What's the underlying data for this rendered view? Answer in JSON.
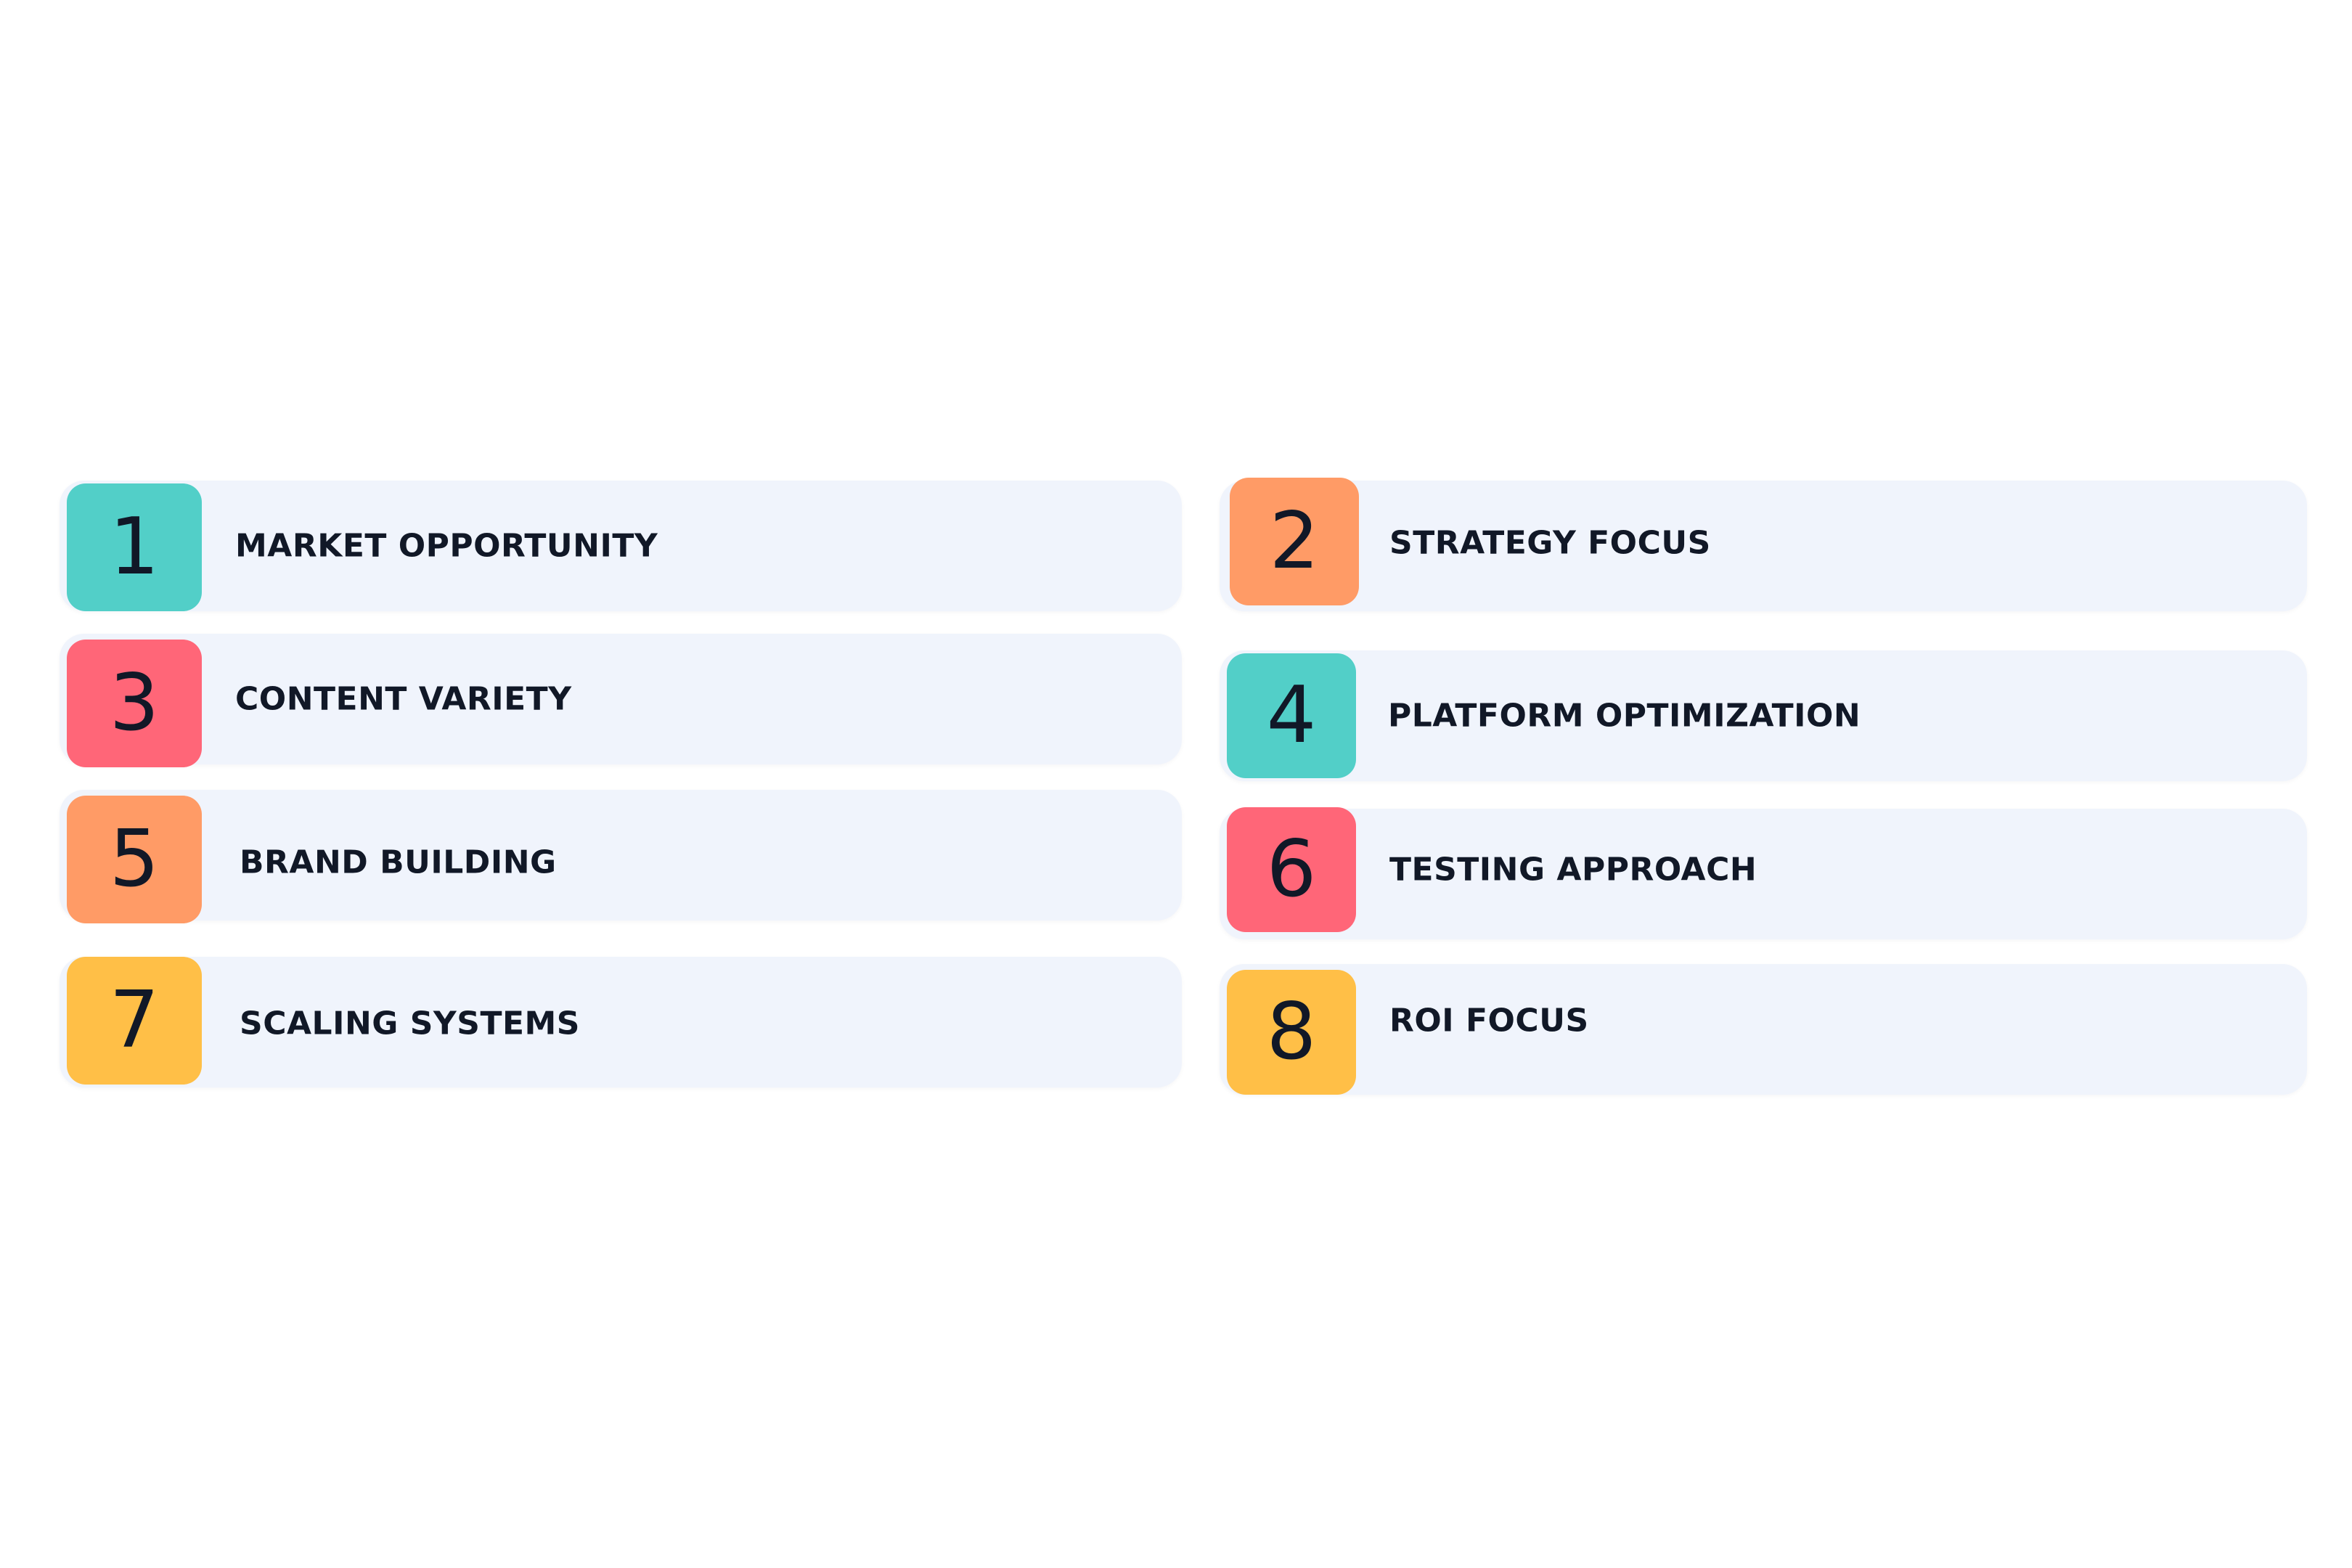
{
  "items": [
    {
      "number": "1",
      "label": "MARKET OPPORTUNITY",
      "color": "#52cfc8"
    },
    {
      "number": "2",
      "label": "STRATEGY FOCUS",
      "color": "#ff9b66"
    },
    {
      "number": "3",
      "label": "CONTENT VARIETY",
      "color": "#ff6678"
    },
    {
      "number": "4",
      "label": "PLATFORM OPTIMIZATION",
      "color": "#52cfc8"
    },
    {
      "number": "5",
      "label": "BRAND BUILDING",
      "color": "#ff9b66"
    },
    {
      "number": "6",
      "label": "TESTING APPROACH",
      "color": "#ff6678"
    },
    {
      "number": "7",
      "label": "SCALING SYSTEMS",
      "color": "#ffbf47"
    },
    {
      "number": "8",
      "label": "ROI FOCUS",
      "color": "#ffbf47"
    }
  ],
  "card_background": "#f0f4fc",
  "text_color": "#111827"
}
